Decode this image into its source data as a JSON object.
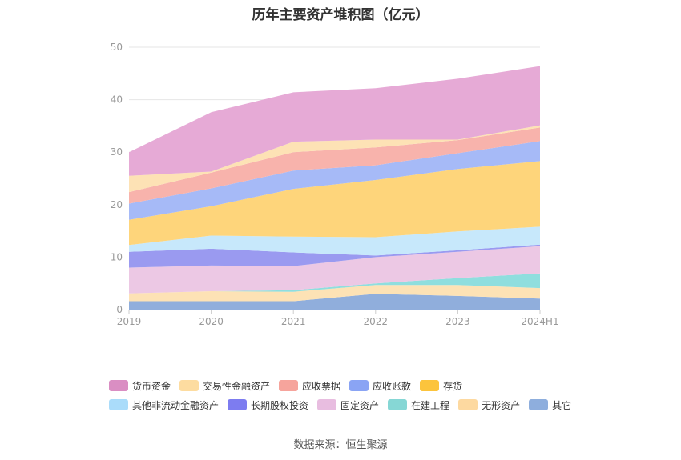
{
  "chart_data": {
    "type": "area",
    "stacked": true,
    "title": "历年主要资产堆积图（亿元）",
    "categories": [
      "2019",
      "2020",
      "2021",
      "2022",
      "2023",
      "2024H1"
    ],
    "ylim": [
      0,
      50
    ],
    "yticks": [
      0,
      10,
      20,
      30,
      40,
      50
    ],
    "grid": true,
    "legend_position": "bottom",
    "series": [
      {
        "name": "其它",
        "color": "#90aedc",
        "values": [
          1.6,
          1.6,
          1.6,
          3.0,
          2.6,
          2.1
        ]
      },
      {
        "name": "无形资产",
        "color": "#fde2b5",
        "values": [
          1.5,
          1.9,
          1.8,
          1.7,
          2.1,
          2.0
        ]
      },
      {
        "name": "在建工程",
        "color": "#8fdede",
        "values": [
          0.0,
          0.0,
          0.3,
          0.3,
          1.3,
          2.8
        ]
      },
      {
        "name": "固定资产",
        "color": "#ecc8e4",
        "values": [
          4.9,
          4.9,
          4.6,
          5.0,
          5.0,
          5.2
        ]
      },
      {
        "name": "长期股权投资",
        "color": "#9a9af0",
        "values": [
          3.0,
          3.2,
          2.6,
          0.3,
          0.3,
          0.3
        ]
      },
      {
        "name": "其他非流动金融资产",
        "color": "#c7e8fb",
        "values": [
          1.3,
          2.5,
          3.0,
          3.5,
          3.6,
          3.4
        ]
      },
      {
        "name": "存货",
        "color": "#fed57b",
        "values": [
          4.8,
          5.6,
          9.1,
          10.9,
          11.9,
          12.5
        ]
      },
      {
        "name": "应收账款",
        "color": "#a6baf7",
        "values": [
          3.1,
          3.4,
          3.5,
          2.8,
          3.0,
          3.8
        ]
      },
      {
        "name": "应收票据",
        "color": "#f8b3ac",
        "values": [
          2.2,
          3.0,
          3.5,
          3.4,
          2.5,
          2.6
        ]
      },
      {
        "name": "交易性金融资产",
        "color": "#fde2b5",
        "values": [
          3.1,
          0.2,
          2.0,
          1.5,
          0.1,
          0.4
        ]
      },
      {
        "name": "货币资金",
        "color": "#e6aad6",
        "values": [
          4.5,
          11.3,
          9.4,
          9.8,
          11.6,
          11.3
        ]
      }
    ]
  },
  "legend": {
    "row1": [
      {
        "label": "货币资金",
        "color": "#da8ec3"
      },
      {
        "label": "交易性金融资产",
        "color": "#fddca0"
      },
      {
        "label": "应收票据",
        "color": "#f6a49c"
      },
      {
        "label": "应收账款",
        "color": "#8aa4f4"
      },
      {
        "label": "存货",
        "color": "#fcc43c"
      }
    ],
    "row2": [
      {
        "label": "其他非流动金融资产",
        "color": "#aadcfa"
      },
      {
        "label": "长期股权投资",
        "color": "#7d7cf0"
      },
      {
        "label": "固定资产",
        "color": "#e8bde0"
      },
      {
        "label": "在建工程",
        "color": "#86d7d5"
      },
      {
        "label": "无形资产",
        "color": "#fdd9a0"
      },
      {
        "label": "其它",
        "color": "#8eaedd"
      }
    ]
  },
  "source": "数据来源：恒生聚源"
}
